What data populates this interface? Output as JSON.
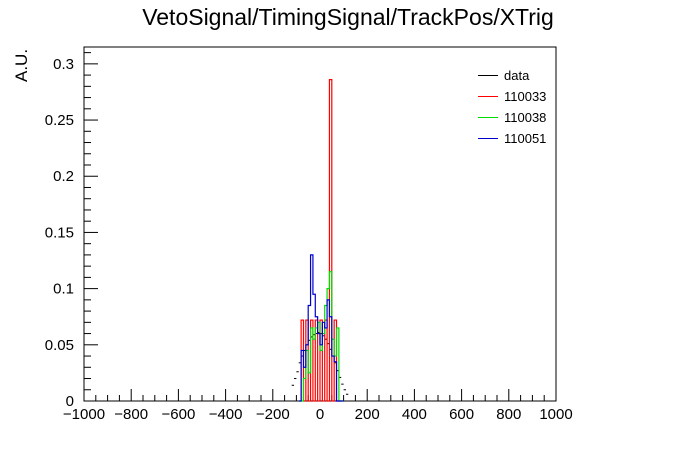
{
  "chart_data": {
    "type": "histogram",
    "title": "VetoSignal/TimingSignal/TrackPos/XTrig",
    "xlabel": "",
    "ylabel": "A.U.",
    "xlim": [
      -1000,
      1000
    ],
    "ylim": [
      0,
      0.315
    ],
    "x_ticks": [
      "−1000",
      "−800",
      "−600",
      "−400",
      "−200",
      "0",
      "200",
      "400",
      "600",
      "800",
      "1000"
    ],
    "y_ticks": [
      "0",
      "0.05",
      "0.1",
      "0.15",
      "0.2",
      "0.25",
      "0.3"
    ],
    "bin_width": 10,
    "legend_position": "top-right",
    "series": [
      {
        "name": "data",
        "color": "#000000",
        "style": "markers",
        "x": [
          -115,
          -105,
          -95,
          -85,
          -75,
          -65,
          -55,
          -45,
          -35,
          -25,
          -15,
          -5,
          5,
          15,
          25,
          35,
          45,
          55,
          65,
          75,
          85,
          95,
          105,
          115
        ],
        "values": [
          0.014,
          0.02,
          0.026,
          0.034,
          0.04,
          0.045,
          0.05,
          0.054,
          0.057,
          0.059,
          0.06,
          0.061,
          0.06,
          0.058,
          0.055,
          0.051,
          0.046,
          0.04,
          0.034,
          0.027,
          0.021,
          0.015,
          0.01,
          0.006
        ]
      },
      {
        "name": "110033",
        "color": "#ff0000",
        "style": "step",
        "x": [
          -75,
          -65,
          -55,
          -45,
          -35,
          -25,
          -15,
          -5,
          5,
          15,
          25,
          35,
          45,
          55,
          65,
          75,
          85
        ],
        "values": [
          0.072,
          0.0,
          0.072,
          0.0,
          0.072,
          0.0,
          0.072,
          0.0,
          0.072,
          0.0,
          0.072,
          0.0,
          0.286,
          0.0,
          0.072,
          0.0,
          0.0
        ]
      },
      {
        "name": "110038",
        "color": "#00dd00",
        "style": "step",
        "x": [
          -85,
          -75,
          -65,
          -55,
          -45,
          -35,
          -25,
          -15,
          -5,
          5,
          15,
          25,
          35,
          45,
          55,
          65,
          75,
          85,
          95
        ],
        "values": [
          0.0,
          0.0,
          0.02,
          0.045,
          0.025,
          0.065,
          0.055,
          0.065,
          0.07,
          0.045,
          0.06,
          0.085,
          0.1,
          0.115,
          0.055,
          0.04,
          0.065,
          0.0,
          0.0
        ]
      },
      {
        "name": "110051",
        "color": "#0000cc",
        "style": "step",
        "x": [
          -85,
          -75,
          -65,
          -55,
          -45,
          -35,
          -25,
          -15,
          -5,
          5,
          15,
          25,
          35,
          45,
          55,
          65,
          75,
          85,
          95
        ],
        "values": [
          0.0,
          0.045,
          0.03,
          0.05,
          0.085,
          0.13,
          0.095,
          0.075,
          0.06,
          0.05,
          0.07,
          0.065,
          0.09,
          0.075,
          0.04,
          0.035,
          0.0,
          0.0,
          0.0
        ]
      }
    ]
  }
}
